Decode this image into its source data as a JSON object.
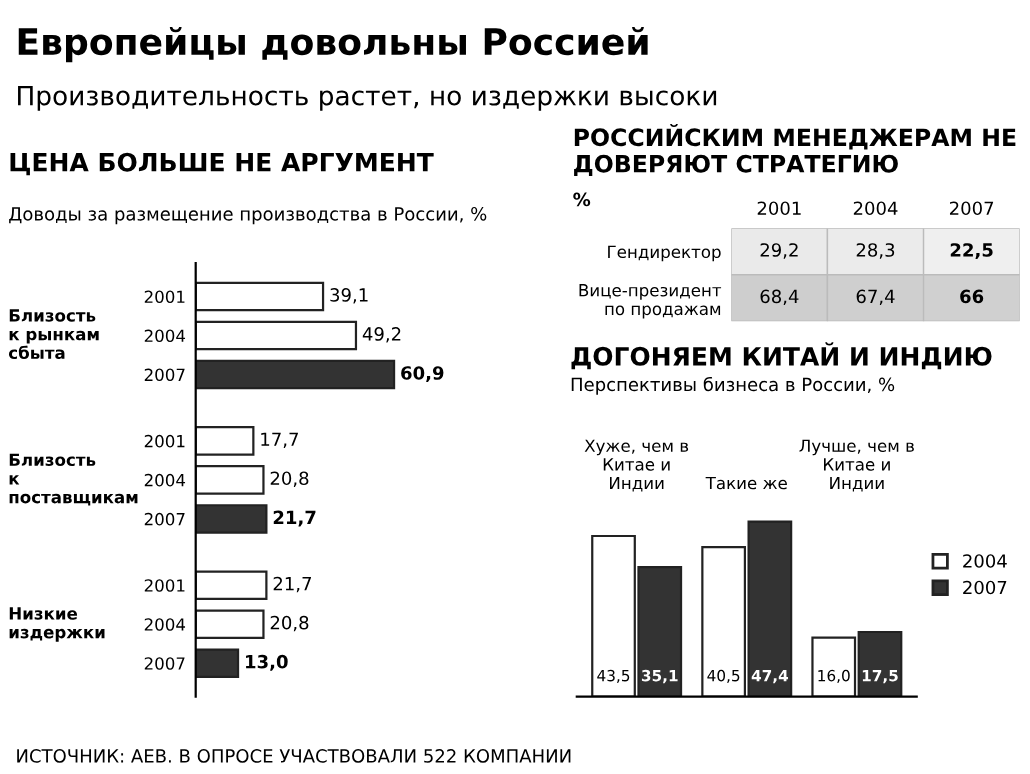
{
  "chart_data": [
    {
      "type": "other",
      "title": "Европейцы довольны Россией",
      "subtitle": "Производительность растет, но издержки высоки",
      "annotations": [
        "ИСТОЧНИК: AEB. В ОПРОСЕ УЧАСТВОВАЛИ 522 КОМПАНИИ"
      ]
    },
    {
      "type": "bar",
      "orientation": "horizontal",
      "title": "ЦЕНА БОЛЬШЕ НЕ АРГУМЕНТ",
      "subtitle": "Доводы за размещение производства в России, %",
      "categories": [
        "2001",
        "2004",
        "2007",
        "2001",
        "2004",
        "2007",
        "2001",
        "2004",
        "2007"
      ],
      "values": [
        39.1,
        49.2,
        60.9,
        17.7,
        20.8,
        21.7,
        21.7,
        20.8,
        13.0
      ],
      "value_labels": [
        "39,1",
        "49,2",
        "60,9",
        "17,7",
        "20,8",
        "21,7",
        "21,7",
        "20,8",
        "13,0"
      ],
      "colors": [
        "#ffffff",
        "#ffffff",
        "#333333",
        "#ffffff",
        "#ffffff",
        "#333333",
        "#ffffff",
        "#ffffff",
        "#333333"
      ],
      "annotations": [
        "Близость к рынкам сбыта",
        "Близость к поставщикам",
        "Низкие издержки"
      ]
    },
    {
      "type": "heatmap",
      "title": "РОССИЙСКИМ МЕНЕДЖЕРАМ НЕ ДОВЕРЯЮТ СТРАТЕГИЮ",
      "subtitle": "%",
      "categories": [
        "2001",
        "2004",
        "2007"
      ],
      "y_categories": [
        "Гендиректор",
        "Вице-президент по продажам"
      ],
      "cells": [
        [
          29.2,
          28.3,
          22.5
        ],
        [
          68.4,
          67.4,
          66
        ]
      ],
      "cell_labels": [
        [
          "29,2",
          "28,3",
          "22,5"
        ],
        [
          "68,4",
          "67,4",
          "66"
        ]
      ]
    },
    {
      "type": "bar",
      "title": "ДОГОНЯЕМ КИТАЙ И ИНДИЮ",
      "subtitle": "Перспективы бизнеса в России, %",
      "categories": [
        "Хуже, чем в Китае и Индии",
        "Такие же",
        "Лучше, чем в Китае и Индии"
      ],
      "series": [
        {
          "name": "2004",
          "color": "#ffffff",
          "values": [
            43.5,
            40.5,
            16.0
          ],
          "value_labels": [
            "43,5",
            "40,5",
            "16,0"
          ]
        },
        {
          "name": "2007",
          "color": "#333333",
          "values": [
            35.1,
            47.4,
            17.5
          ],
          "value_labels": [
            "35,1",
            "47,4",
            "17,5"
          ]
        }
      ],
      "legend": "right"
    }
  ]
}
